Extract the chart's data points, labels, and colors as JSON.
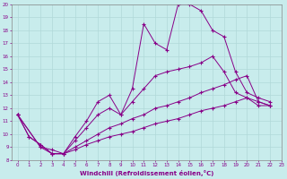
{
  "background_color": "#c8ecec",
  "grid_color": "#b0d8d8",
  "line_color": "#880088",
  "marker": "+",
  "xlim": [
    -0.5,
    23
  ],
  "ylim": [
    8,
    20
  ],
  "xlabel": "Windchill (Refroidissement éolien,°C)",
  "xticks": [
    0,
    1,
    2,
    3,
    4,
    5,
    6,
    7,
    8,
    9,
    10,
    11,
    12,
    13,
    14,
    15,
    16,
    17,
    18,
    19,
    20,
    21,
    22,
    23
  ],
  "yticks": [
    8,
    9,
    10,
    11,
    12,
    13,
    14,
    15,
    16,
    17,
    18,
    19,
    20
  ],
  "series": [
    {
      "x": [
        0,
        1,
        2,
        3,
        4,
        5,
        6,
        7,
        8,
        9,
        10,
        11,
        12,
        13,
        14,
        15,
        16,
        17,
        18,
        19,
        20,
        21,
        22
      ],
      "y": [
        11.5,
        9.8,
        9.2,
        8.5,
        8.5,
        9.8,
        11.0,
        12.5,
        13.0,
        11.5,
        13.5,
        18.5,
        17.0,
        16.5,
        20.0,
        20.0,
        19.5,
        18.0,
        17.5,
        14.8,
        13.2,
        12.8,
        12.5
      ]
    },
    {
      "x": [
        0,
        1,
        2,
        3,
        4,
        5,
        6,
        7,
        8,
        9,
        10,
        11,
        12,
        13,
        14,
        15,
        16,
        17,
        18,
        19,
        20,
        21,
        22
      ],
      "y": [
        11.5,
        9.8,
        9.2,
        8.5,
        8.5,
        9.5,
        10.5,
        11.5,
        12.0,
        11.5,
        12.5,
        13.5,
        14.5,
        14.8,
        15.0,
        15.2,
        15.5,
        16.0,
        14.8,
        13.2,
        12.8,
        12.5,
        12.2
      ]
    },
    {
      "x": [
        0,
        2,
        3,
        4,
        5,
        6,
        7,
        8,
        9,
        10,
        11,
        12,
        13,
        14,
        15,
        16,
        17,
        18,
        19,
        20,
        21,
        22
      ],
      "y": [
        11.5,
        9.0,
        8.8,
        8.5,
        9.0,
        9.5,
        10.0,
        10.5,
        10.8,
        11.2,
        11.5,
        12.0,
        12.2,
        12.5,
        12.8,
        13.2,
        13.5,
        13.8,
        14.2,
        14.5,
        12.5,
        12.2
      ]
    },
    {
      "x": [
        0,
        2,
        3,
        4,
        5,
        6,
        7,
        8,
        9,
        10,
        11,
        12,
        13,
        14,
        15,
        16,
        17,
        18,
        19,
        20,
        21,
        22
      ],
      "y": [
        11.5,
        9.0,
        8.5,
        8.5,
        8.8,
        9.2,
        9.5,
        9.8,
        10.0,
        10.2,
        10.5,
        10.8,
        11.0,
        11.2,
        11.5,
        11.8,
        12.0,
        12.2,
        12.5,
        12.8,
        12.2,
        12.2
      ]
    }
  ]
}
